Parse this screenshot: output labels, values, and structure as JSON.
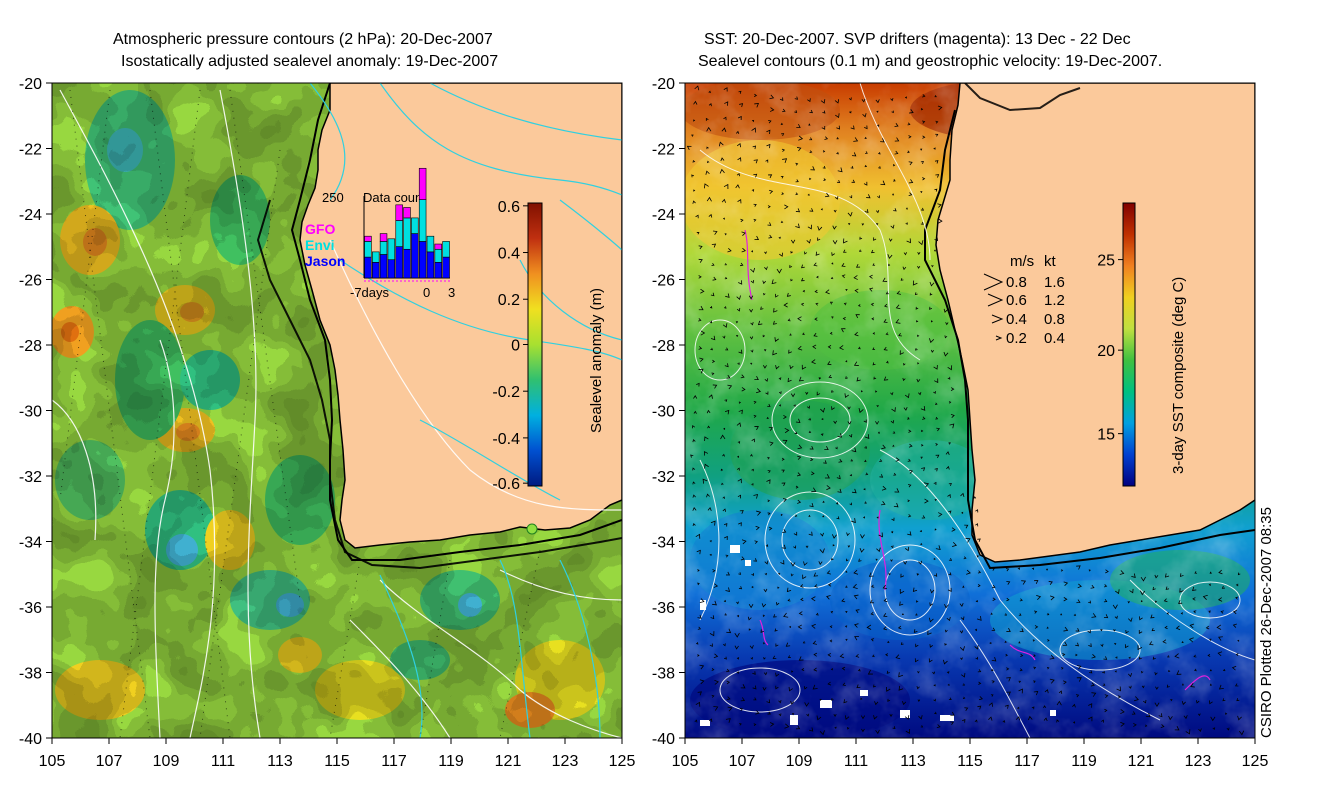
{
  "left_panel": {
    "title_line1": "Atmospheric pressure contours (2 hPa): 20-Dec-2007",
    "title_line2": "Isostatically adjusted sealevel anomaly: 19-Dec-2007",
    "colorbar": {
      "label": "Sealevel anomaly (m)",
      "ticks": [
        "0.6",
        "0.4",
        "0.2",
        "0",
        "-0.2",
        "-0.4",
        "-0.6"
      ],
      "colors": [
        "#001a80",
        "#0050d0",
        "#00b0e0",
        "#30c070",
        "#a8e030",
        "#f0e020",
        "#f09020",
        "#c03010",
        "#801000"
      ]
    },
    "inset": {
      "title": "Data count",
      "y_label": "250",
      "x_labels": [
        "-7days",
        "0",
        "3"
      ],
      "legend": [
        {
          "name": "GFO",
          "color": "#ff00ff"
        },
        {
          "name": "Envi",
          "color": "#00e0e0"
        },
        {
          "name": "Jason",
          "color": "#0000ff"
        }
      ],
      "bars": [
        {
          "jason": 40,
          "envi": 30,
          "gfo": 10
        },
        {
          "jason": 30,
          "envi": 20,
          "gfo": 0
        },
        {
          "jason": 45,
          "envi": 25,
          "gfo": 15
        },
        {
          "jason": 35,
          "envi": 40,
          "gfo": 0
        },
        {
          "jason": 60,
          "envi": 50,
          "gfo": 30
        },
        {
          "jason": 55,
          "envi": 60,
          "gfo": 20
        },
        {
          "jason": 85,
          "envi": 30,
          "gfo": 0
        },
        {
          "jason": 70,
          "envi": 80,
          "gfo": 60
        },
        {
          "jason": 50,
          "envi": 30,
          "gfo": 0
        },
        {
          "jason": 30,
          "envi": 25,
          "gfo": 10
        },
        {
          "jason": 40,
          "envi": 30,
          "gfo": 0
        }
      ]
    }
  },
  "right_panel": {
    "title_line1": "SST: 20-Dec-2007. SVP drifters (magenta): 13 Dec - 22 Dec",
    "title_line2": "Sealevel contours (0.1 m) and geostrophic velocity: 19-Dec-2007.",
    "colorbar": {
      "label": "3-day SST composite (deg C)",
      "ticks": [
        "25",
        "20",
        "15"
      ],
      "colors": [
        "#000080",
        "#0040d0",
        "#00a0e0",
        "#00c080",
        "#40c040",
        "#c0e040",
        "#f0d020",
        "#f08020",
        "#c03000",
        "#800000"
      ]
    },
    "velocity_legend": {
      "header_ms": "m/s",
      "header_kt": "kt",
      "rows": [
        {
          "ms": "0.8",
          "kt": "1.6"
        },
        {
          "ms": "0.6",
          "kt": "1.2"
        },
        {
          "ms": "0.4",
          "kt": "0.8"
        },
        {
          "ms": "0.2",
          "kt": "0.4"
        }
      ]
    },
    "plotted_note": "CSIRO Plotted 26-Dec-2007 08:35"
  },
  "axes": {
    "lat_ticks": [
      "-20",
      "-22",
      "-24",
      "-26",
      "-28",
      "-30",
      "-32",
      "-34",
      "-36",
      "-38",
      "-40"
    ],
    "lon_ticks": [
      "105",
      "107",
      "109",
      "111",
      "113",
      "115",
      "117",
      "119",
      "121",
      "123",
      "125"
    ]
  },
  "colors": {
    "land": "#fbc99b",
    "coast": "#000000",
    "contour_white": "#ffffff",
    "contour_cyan": "#30d0e0",
    "drifter": "#e020e0"
  }
}
